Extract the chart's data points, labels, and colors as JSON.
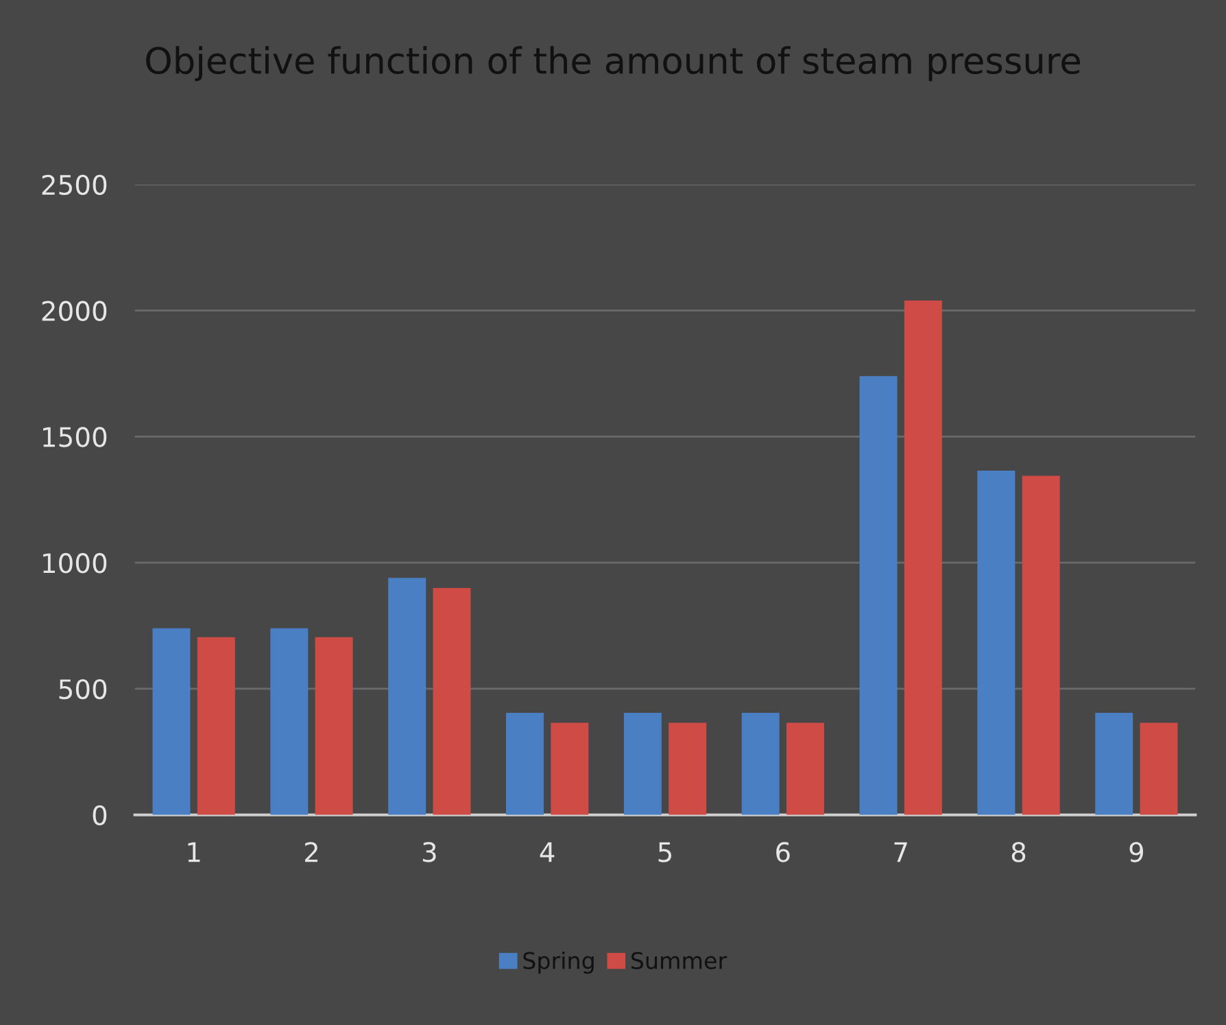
{
  "chart_data": {
    "type": "bar",
    "title": "Objective function of the amount of steam pressure",
    "categories": [
      "1",
      "2",
      "3",
      "4",
      "5",
      "6",
      "7",
      "8",
      "9"
    ],
    "series": [
      {
        "name": "Spring",
        "color": "#4a7fc4",
        "values": [
          740,
          740,
          940,
          405,
          405,
          405,
          1740,
          1365,
          405
        ]
      },
      {
        "name": "Summer",
        "color": "#cf4b46",
        "values": [
          705,
          705,
          900,
          365,
          365,
          365,
          2040,
          1345,
          365
        ]
      }
    ],
    "ylim": [
      0,
      2500
    ],
    "yticks": [
      0,
      500,
      1000,
      1500,
      2000,
      2500
    ],
    "grid": "y",
    "legend": "bottom"
  }
}
